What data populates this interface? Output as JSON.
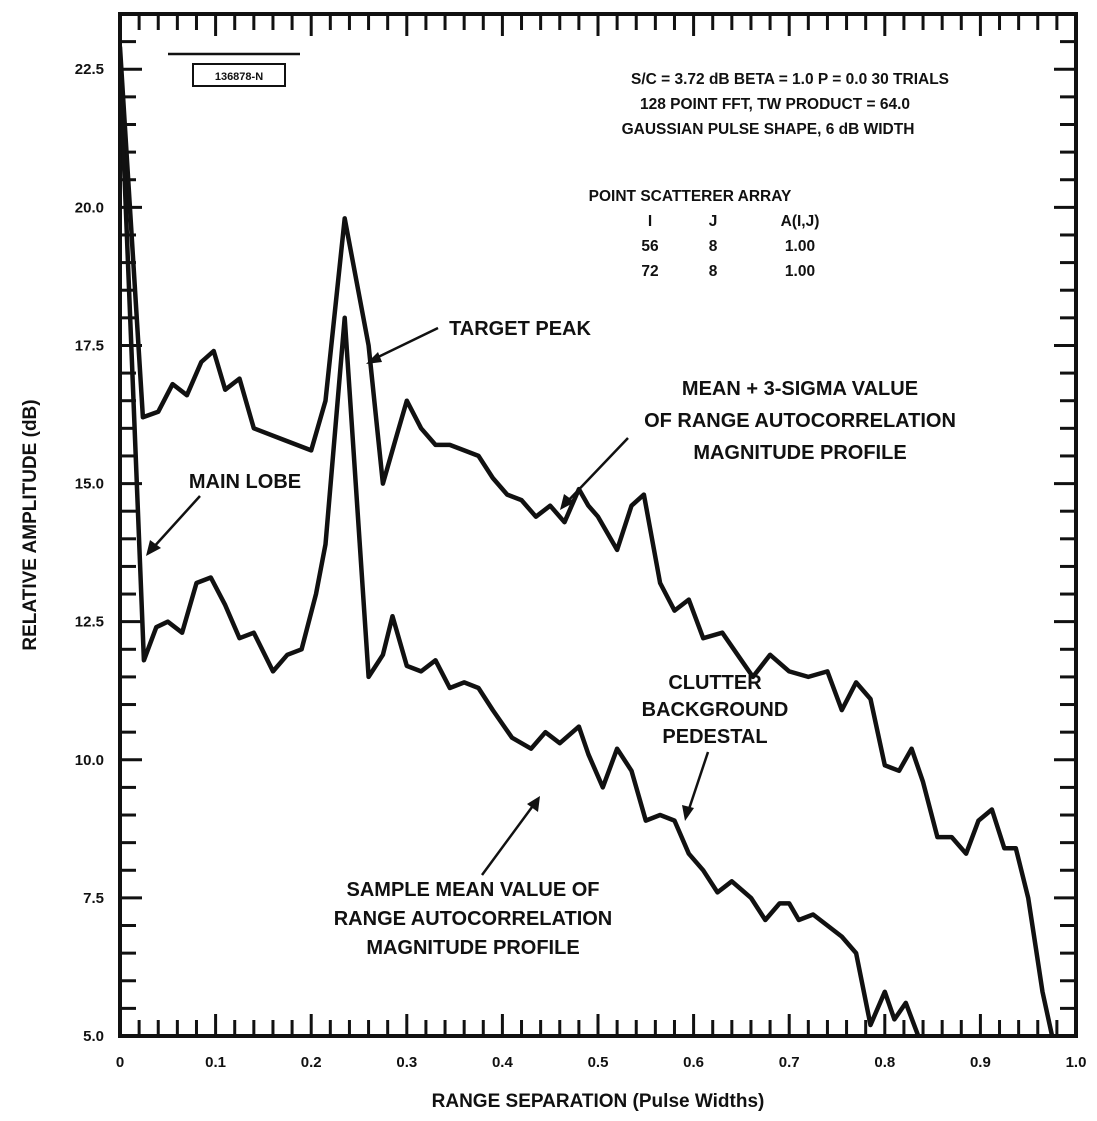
{
  "figure_id": "136878-N",
  "chart_data": {
    "type": "line",
    "title": "",
    "xlabel": "RANGE SEPARATION (Pulse  Widths)",
    "ylabel": "RELATIVE AMPLITUDE (dB)",
    "xlim": [
      0,
      1.0
    ],
    "ylim": [
      5.0,
      23.5
    ],
    "x_ticks": [
      "0",
      "0.1",
      "0.2",
      "0.3",
      "0.4",
      "0.5",
      "0.6",
      "0.7",
      "0.8",
      "0.9",
      "1.0"
    ],
    "y_ticks": [
      "5.0",
      "7.5",
      "10.0",
      "12.5",
      "15.0",
      "17.5",
      "20.0",
      "22.5"
    ],
    "grid": false,
    "legend": "none",
    "parameters": [
      "S/C = 3.72 dB  BETA = 1.0  P = 0.0      30 TRIALS",
      "128 POINT FFT, TW PRODUCT = 64.0",
      "GAUSSIAN PULSE SHAPE, 6 dB WIDTH"
    ],
    "scatterer_table": {
      "title": "POINT SCATTERER ARRAY",
      "columns": [
        "I",
        "J",
        "A(I,J)"
      ],
      "rows": [
        [
          "56",
          "8",
          "1.00"
        ],
        [
          "72",
          "8",
          "1.00"
        ]
      ]
    },
    "annotations": {
      "main_lobe": "MAIN LOBE",
      "target_peak": "TARGET PEAK",
      "upper_curve": [
        "MEAN + 3-SIGMA VALUE",
        "OF RANGE AUTOCORRELATION",
        "MAGNITUDE PROFILE"
      ],
      "clutter": [
        "CLUTTER",
        "BACKGROUND",
        "PEDESTAL"
      ],
      "lower_curve": [
        "SAMPLE MEAN VALUE OF",
        "RANGE AUTOCORRELATION",
        "MAGNITUDE PROFILE"
      ]
    },
    "series": [
      {
        "x": [
          0.0,
          0.024,
          0.04,
          0.055,
          0.07,
          0.085,
          0.098,
          0.11,
          0.125,
          0.14,
          0.17,
          0.2,
          0.215,
          0.235,
          0.26,
          0.275,
          0.29,
          0.3,
          0.315,
          0.33,
          0.345,
          0.36,
          0.375,
          0.39,
          0.405,
          0.42,
          0.435,
          0.45,
          0.465,
          0.48,
          0.49,
          0.5,
          0.52,
          0.535,
          0.548,
          0.565,
          0.58,
          0.595,
          0.61,
          0.63,
          0.65,
          0.662,
          0.68,
          0.7,
          0.72,
          0.74,
          0.755,
          0.77,
          0.785,
          0.8,
          0.815,
          0.828,
          0.84,
          0.855,
          0.87,
          0.885,
          0.898,
          0.912,
          0.925,
          0.937,
          0.95,
          0.958,
          0.965,
          0.975,
          0.985
        ],
        "values": [
          22.9,
          16.2,
          16.3,
          16.8,
          16.6,
          17.2,
          17.4,
          16.7,
          16.9,
          16.0,
          15.8,
          15.6,
          16.5,
          19.8,
          17.5,
          15.0,
          15.9,
          16.5,
          16.0,
          15.7,
          15.7,
          15.6,
          15.5,
          15.1,
          14.8,
          14.7,
          14.4,
          14.6,
          14.3,
          14.9,
          14.6,
          14.4,
          13.8,
          14.6,
          14.8,
          13.2,
          12.7,
          12.9,
          12.2,
          12.3,
          11.8,
          11.5,
          11.9,
          11.6,
          11.5,
          11.6,
          10.9,
          11.4,
          11.1,
          9.9,
          9.8,
          10.2,
          9.6,
          8.6,
          8.6,
          8.3,
          8.9,
          9.1,
          8.4,
          8.4,
          7.5,
          6.6,
          5.8,
          5.0,
          4.6
        ]
      },
      {
        "x": [
          0.0,
          0.025,
          0.038,
          0.05,
          0.065,
          0.08,
          0.095,
          0.11,
          0.125,
          0.14,
          0.16,
          0.175,
          0.19,
          0.205,
          0.215,
          0.235,
          0.26,
          0.275,
          0.285,
          0.3,
          0.315,
          0.33,
          0.345,
          0.36,
          0.375,
          0.39,
          0.41,
          0.43,
          0.445,
          0.46,
          0.48,
          0.49,
          0.505,
          0.52,
          0.535,
          0.55,
          0.565,
          0.58,
          0.595,
          0.61,
          0.625,
          0.64,
          0.66,
          0.675,
          0.69,
          0.7,
          0.71,
          0.725,
          0.74,
          0.755,
          0.77,
          0.785,
          0.8,
          0.81,
          0.822,
          0.835,
          0.848,
          0.86,
          0.872
        ],
        "values": [
          22.6,
          11.8,
          12.4,
          12.5,
          12.3,
          13.2,
          13.3,
          12.8,
          12.2,
          12.3,
          11.6,
          11.9,
          12.0,
          13.0,
          13.9,
          18.0,
          11.5,
          11.9,
          12.6,
          11.7,
          11.6,
          11.8,
          11.3,
          11.4,
          11.3,
          10.9,
          10.4,
          10.2,
          10.5,
          10.3,
          10.6,
          10.1,
          9.5,
          10.2,
          9.8,
          8.9,
          9.0,
          8.9,
          8.3,
          8.0,
          7.6,
          7.8,
          7.5,
          7.1,
          7.4,
          7.4,
          7.1,
          7.2,
          7.0,
          6.8,
          6.5,
          5.2,
          5.8,
          5.3,
          5.6,
          5.0,
          4.9,
          4.8,
          4.7
        ]
      }
    ]
  }
}
